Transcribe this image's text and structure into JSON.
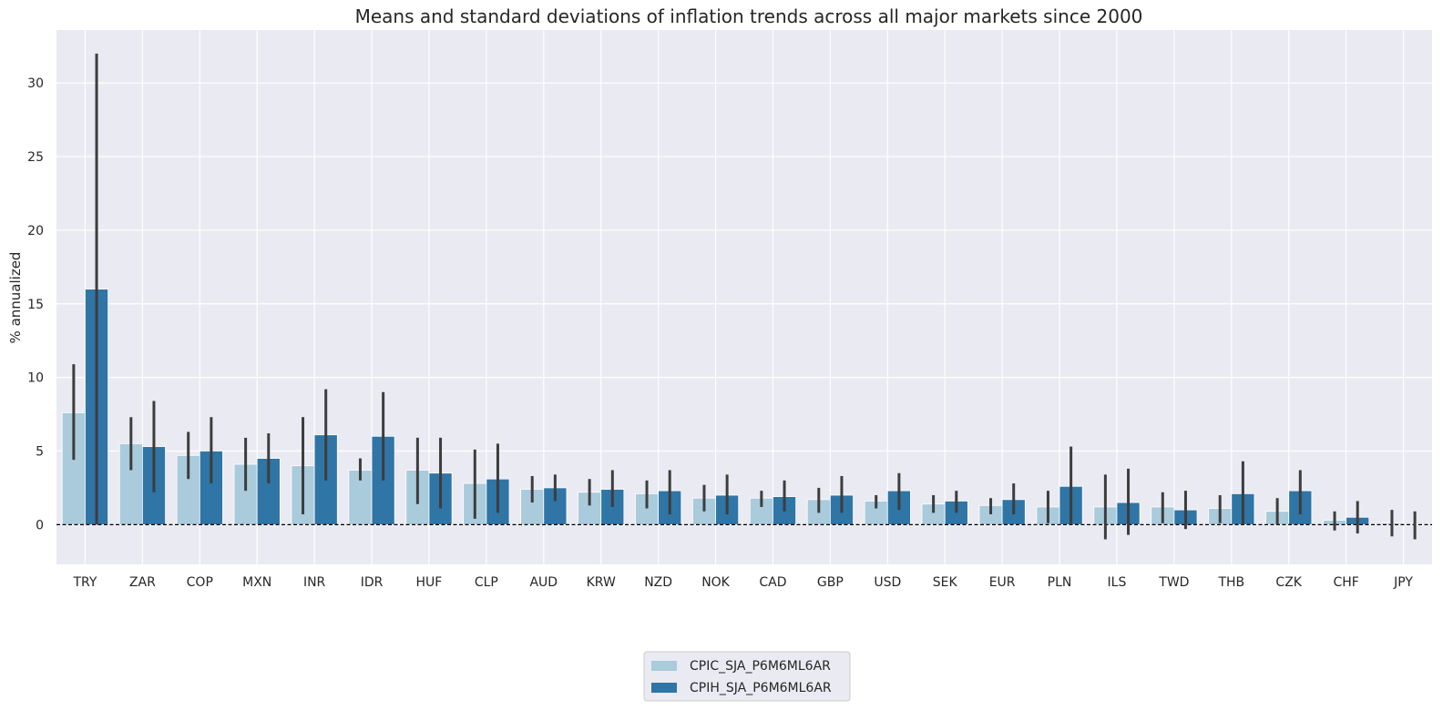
{
  "chart_data": {
    "type": "bar",
    "title": "Means and standard deviations of inflation trends across all major markets since 2000",
    "xlabel": "",
    "ylabel": "% annualized",
    "ylim": [
      -2.7,
      33.6
    ],
    "yticks": [
      0,
      5,
      10,
      15,
      20,
      25,
      30
    ],
    "grid": true,
    "legend_position": "bottom-center",
    "zero_line": {
      "y": 0,
      "style": "dashed",
      "color": "#000000"
    },
    "categories": [
      "TRY",
      "ZAR",
      "COP",
      "MXN",
      "INR",
      "IDR",
      "HUF",
      "CLP",
      "AUD",
      "KRW",
      "NZD",
      "NOK",
      "CAD",
      "GBP",
      "USD",
      "SEK",
      "EUR",
      "PLN",
      "ILS",
      "TWD",
      "THB",
      "CZK",
      "CHF",
      "JPY"
    ],
    "series": [
      {
        "name": "CPIC_SJA_P6M6ML6AR",
        "color": "#a9cbdc",
        "values": [
          7.6,
          5.5,
          4.7,
          4.1,
          4.0,
          3.7,
          3.7,
          2.8,
          2.4,
          2.2,
          2.1,
          1.8,
          1.8,
          1.7,
          1.6,
          1.4,
          1.3,
          1.2,
          1.2,
          1.2,
          1.1,
          0.9,
          0.3,
          0.1
        ],
        "err_low": [
          4.4,
          3.7,
          3.1,
          2.3,
          0.7,
          3.0,
          1.4,
          0.4,
          1.5,
          1.3,
          1.1,
          0.9,
          1.2,
          0.8,
          1.1,
          0.8,
          0.7,
          0.1,
          -1.0,
          0.1,
          0.1,
          0.0,
          -0.4,
          -0.8
        ],
        "err_high": [
          10.9,
          7.3,
          6.3,
          5.9,
          7.3,
          4.5,
          5.9,
          5.1,
          3.3,
          3.1,
          3.0,
          2.7,
          2.3,
          2.5,
          2.0,
          2.0,
          1.8,
          2.3,
          3.4,
          2.2,
          2.0,
          1.8,
          0.9,
          1.0
        ]
      },
      {
        "name": "CPIH_SJA_P6M6ML6AR",
        "color": "#2f75a6",
        "values": [
          16.0,
          5.3,
          5.0,
          4.5,
          6.1,
          6.0,
          3.5,
          3.1,
          2.5,
          2.4,
          2.3,
          2.0,
          1.9,
          2.0,
          2.3,
          1.6,
          1.7,
          2.6,
          1.5,
          1.0,
          2.1,
          2.3,
          0.5,
          0.0
        ],
        "err_low": [
          0.0,
          2.2,
          2.8,
          2.8,
          3.0,
          3.0,
          1.1,
          0.8,
          1.6,
          1.2,
          0.7,
          0.7,
          0.9,
          0.8,
          1.0,
          0.8,
          0.7,
          0.0,
          -0.7,
          -0.3,
          0.0,
          0.7,
          -0.6,
          -1.0
        ],
        "err_high": [
          32.0,
          8.4,
          7.3,
          6.2,
          9.2,
          9.0,
          5.9,
          5.5,
          3.4,
          3.7,
          3.7,
          3.4,
          3.0,
          3.3,
          3.5,
          2.3,
          2.8,
          5.3,
          3.8,
          2.3,
          4.3,
          3.7,
          1.6,
          0.9
        ]
      }
    ]
  }
}
